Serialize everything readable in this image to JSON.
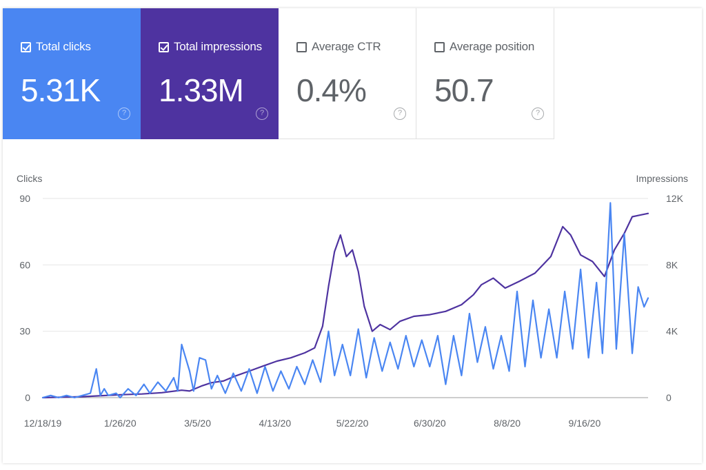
{
  "cards": [
    {
      "label": "Total clicks",
      "value": "5.31K",
      "checked": true,
      "help": "?"
    },
    {
      "label": "Total impressions",
      "value": "1.33M",
      "checked": true,
      "help": "?"
    },
    {
      "label": "Average CTR",
      "value": "0.4%",
      "checked": false,
      "help": "?"
    },
    {
      "label": "Average position",
      "value": "50.7",
      "checked": false,
      "help": "?"
    }
  ],
  "colors": {
    "clicks": "#4a86f2",
    "impressions": "#4e33a0",
    "grid": "#e6e6e6"
  },
  "chart_data": {
    "type": "line",
    "y_left_label": "Clicks",
    "y_right_label": "Impressions",
    "y_left_ticks": [
      "0",
      "30",
      "60",
      "90"
    ],
    "y_right_ticks": [
      "0",
      "4K",
      "8K",
      "12K"
    ],
    "y_left_range": [
      0,
      90
    ],
    "y_right_range": [
      0,
      12000
    ],
    "x_range": [
      "12/18/19",
      "10/18/20"
    ],
    "x_ticks": [
      "12/18/19",
      "1/26/20",
      "3/5/20",
      "4/13/20",
      "5/22/20",
      "6/30/20",
      "8/8/20",
      "9/16/20"
    ],
    "grid": true,
    "series": [
      {
        "name": "Clicks",
        "axis": "left",
        "points": [
          [
            "12/18/19",
            0
          ],
          [
            "12/22/19",
            1
          ],
          [
            "12/26/19",
            0
          ],
          [
            "12/30/19",
            1
          ],
          [
            "1/3/20",
            0
          ],
          [
            "1/7/20",
            1
          ],
          [
            "1/11/20",
            2
          ],
          [
            "1/14/20",
            13
          ],
          [
            "1/16/20",
            1
          ],
          [
            "1/18/20",
            4
          ],
          [
            "1/20/20",
            1
          ],
          [
            "1/24/20",
            2
          ],
          [
            "1/26/20",
            0
          ],
          [
            "1/30/20",
            4
          ],
          [
            "2/3/20",
            1
          ],
          [
            "2/7/20",
            6
          ],
          [
            "2/10/20",
            2
          ],
          [
            "2/14/20",
            7
          ],
          [
            "2/18/20",
            3
          ],
          [
            "2/22/20",
            9
          ],
          [
            "2/24/20",
            3
          ],
          [
            "2/26/20",
            24
          ],
          [
            "3/1/20",
            12
          ],
          [
            "3/3/20",
            3
          ],
          [
            "3/6/20",
            18
          ],
          [
            "3/9/20",
            17
          ],
          [
            "3/12/20",
            4
          ],
          [
            "3/15/20",
            10
          ],
          [
            "3/19/20",
            2
          ],
          [
            "3/23/20",
            11
          ],
          [
            "3/27/20",
            3
          ],
          [
            "3/31/20",
            13
          ],
          [
            "4/4/20",
            2
          ],
          [
            "4/8/20",
            14
          ],
          [
            "4/12/20",
            3
          ],
          [
            "4/16/20",
            12
          ],
          [
            "4/20/20",
            4
          ],
          [
            "4/24/20",
            14
          ],
          [
            "4/28/20",
            6
          ],
          [
            "5/2/20",
            17
          ],
          [
            "5/6/20",
            7
          ],
          [
            "5/10/20",
            30
          ],
          [
            "5/13/20",
            10
          ],
          [
            "5/17/20",
            24
          ],
          [
            "5/21/20",
            10
          ],
          [
            "5/25/20",
            31
          ],
          [
            "5/29/20",
            9
          ],
          [
            "6/2/20",
            27
          ],
          [
            "6/6/20",
            12
          ],
          [
            "6/10/20",
            25
          ],
          [
            "6/14/20",
            13
          ],
          [
            "6/18/20",
            28
          ],
          [
            "6/22/20",
            14
          ],
          [
            "6/26/20",
            26
          ],
          [
            "6/30/20",
            14
          ],
          [
            "7/4/20",
            28
          ],
          [
            "7/8/20",
            6
          ],
          [
            "7/12/20",
            28
          ],
          [
            "7/16/20",
            10
          ],
          [
            "7/20/20",
            38
          ],
          [
            "7/24/20",
            16
          ],
          [
            "7/28/20",
            32
          ],
          [
            "8/1/20",
            13
          ],
          [
            "8/5/20",
            28
          ],
          [
            "8/9/20",
            12
          ],
          [
            "8/13/20",
            48
          ],
          [
            "8/17/20",
            14
          ],
          [
            "8/21/20",
            44
          ],
          [
            "8/25/20",
            18
          ],
          [
            "8/29/20",
            40
          ],
          [
            "9/2/20",
            18
          ],
          [
            "9/6/20",
            48
          ],
          [
            "9/10/20",
            22
          ],
          [
            "9/14/20",
            58
          ],
          [
            "9/18/20",
            18
          ],
          [
            "9/22/20",
            52
          ],
          [
            "9/25/20",
            20
          ],
          [
            "9/29/20",
            88
          ],
          [
            "10/2/20",
            22
          ],
          [
            "10/6/20",
            74
          ],
          [
            "10/10/20",
            20
          ],
          [
            "10/13/20",
            50
          ],
          [
            "10/16/20",
            41
          ],
          [
            "10/18/20",
            45
          ]
        ]
      },
      {
        "name": "Impressions",
        "axis": "right",
        "points": [
          [
            "12/18/19",
            0
          ],
          [
            "12/28/19",
            30
          ],
          [
            "1/7/20",
            60
          ],
          [
            "1/17/20",
            120
          ],
          [
            "1/27/20",
            180
          ],
          [
            "2/6/20",
            220
          ],
          [
            "2/16/20",
            300
          ],
          [
            "2/26/20",
            450
          ],
          [
            "3/1/20",
            400
          ],
          [
            "3/7/20",
            700
          ],
          [
            "3/12/20",
            900
          ],
          [
            "3/18/20",
            1000
          ],
          [
            "3/24/20",
            1300
          ],
          [
            "3/31/20",
            1600
          ],
          [
            "4/7/20",
            1900
          ],
          [
            "4/14/20",
            2200
          ],
          [
            "4/21/20",
            2400
          ],
          [
            "4/28/20",
            2700
          ],
          [
            "5/3/20",
            3000
          ],
          [
            "5/7/20",
            4300
          ],
          [
            "5/10/20",
            6700
          ],
          [
            "5/13/20",
            8800
          ],
          [
            "5/16/20",
            9800
          ],
          [
            "5/19/20",
            8500
          ],
          [
            "5/22/20",
            8900
          ],
          [
            "5/25/20",
            7600
          ],
          [
            "5/28/20",
            5500
          ],
          [
            "6/1/20",
            4000
          ],
          [
            "6/5/20",
            4400
          ],
          [
            "6/10/20",
            4100
          ],
          [
            "6/15/20",
            4600
          ],
          [
            "6/22/20",
            4900
          ],
          [
            "6/30/20",
            5000
          ],
          [
            "7/8/20",
            5200
          ],
          [
            "7/16/20",
            5600
          ],
          [
            "7/22/20",
            6200
          ],
          [
            "7/26/20",
            6800
          ],
          [
            "8/1/20",
            7200
          ],
          [
            "8/7/20",
            6600
          ],
          [
            "8/14/20",
            7000
          ],
          [
            "8/22/20",
            7500
          ],
          [
            "8/30/20",
            8500
          ],
          [
            "9/5/20",
            10300
          ],
          [
            "9/9/20",
            9800
          ],
          [
            "9/14/20",
            8600
          ],
          [
            "9/20/20",
            8200
          ],
          [
            "9/26/20",
            7300
          ],
          [
            "10/1/20",
            8900
          ],
          [
            "10/6/20",
            9900
          ],
          [
            "10/10/20",
            10900
          ],
          [
            "10/14/20",
            11000
          ],
          [
            "10/18/20",
            11100
          ]
        ]
      }
    ]
  }
}
